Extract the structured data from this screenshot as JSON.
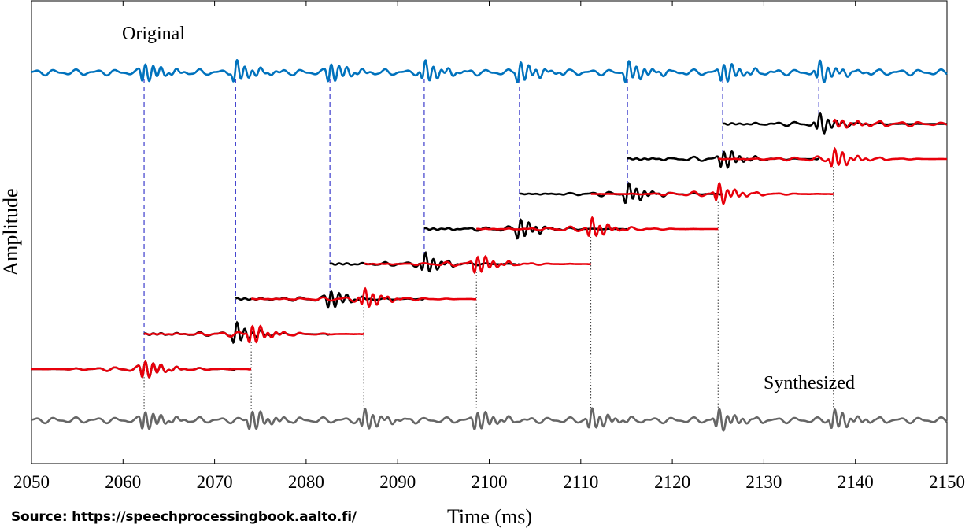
{
  "chart_data": {
    "type": "line",
    "xlabel": "Time (ms)",
    "ylabel": "Amplitude",
    "xlim": [
      2050,
      2150
    ],
    "xticks": [
      2050,
      2060,
      2070,
      2080,
      2090,
      2100,
      2110,
      2120,
      2130,
      2140,
      2150
    ],
    "grid": false,
    "annotations": [
      "Original",
      "Synthesized"
    ],
    "colors": {
      "original": "#0072BD",
      "analysis": "#000000",
      "synthesis": "#E8000B",
      "synthesized": "#666666",
      "markers": "#3D3DCC"
    },
    "original_pitch_marks_ms": [
      2062.3,
      2072.3,
      2082.6,
      2092.9,
      2103.3,
      2115.1,
      2125.5,
      2136.0
    ],
    "synthesized_pitch_marks_ms": [
      2062.3,
      2074.0,
      2086.3,
      2098.6,
      2111.1,
      2125.0,
      2137.6
    ],
    "analysis_frames_ms": [
      [
        2050.0,
        2072.3
      ],
      [
        2062.3,
        2082.6
      ],
      [
        2072.3,
        2092.9
      ],
      [
        2082.6,
        2103.3
      ],
      [
        2092.9,
        2115.1
      ],
      [
        2103.3,
        2125.5
      ],
      [
        2115.1,
        2136.0
      ],
      [
        2125.5,
        2150.0
      ]
    ],
    "synthesis_frames_ms": [
      [
        2050.0,
        2074.0
      ],
      [
        2062.3,
        2086.3
      ],
      [
        2074.0,
        2098.6
      ],
      [
        2086.3,
        2111.1
      ],
      [
        2098.6,
        2125.0
      ],
      [
        2111.1,
        2137.6
      ],
      [
        2125.0,
        2150.0
      ],
      [
        2137.6,
        2150.0
      ]
    ]
  },
  "source": "Source: https://speechprocessingbook.aalto.fi/"
}
